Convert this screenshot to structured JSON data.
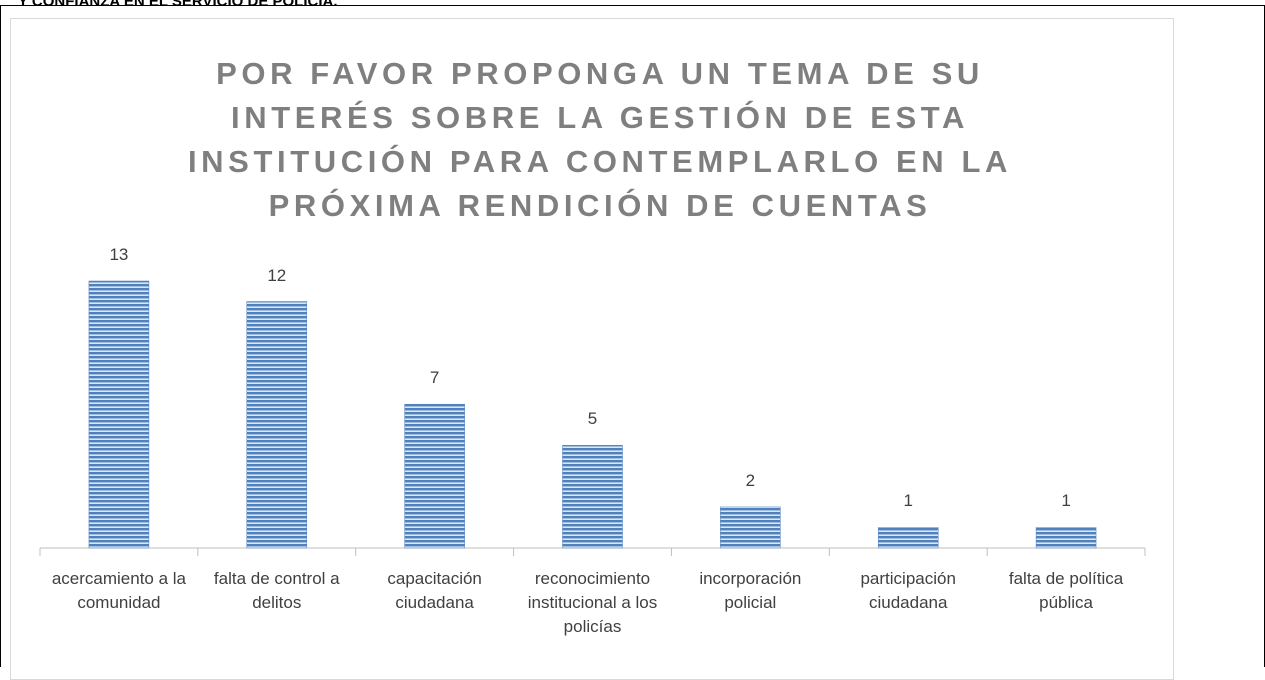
{
  "header": {
    "title": "Y CONFIANZA EN EL SERVICIO DE POLICIA."
  },
  "chart_data": {
    "type": "bar",
    "title": "POR FAVOR PROPONGA UN TEMA DE SU INTERÉS SOBRE LA GESTIÓN DE ESTA INSTITUCIÓN PARA CONTEMPLARLO EN LA PRÓXIMA RENDICIÓN DE CUENTAS",
    "categories": [
      "acercamiento a la comunidad",
      "falta de control a delitos",
      "capacitación ciudadana",
      "reconocimiento institucional a los policías",
      "incorporación policial",
      "participación ciudadana",
      "falta de política pública"
    ],
    "values": [
      13,
      12,
      7,
      5,
      2,
      1,
      1
    ],
    "color": "#4f81bd"
  }
}
